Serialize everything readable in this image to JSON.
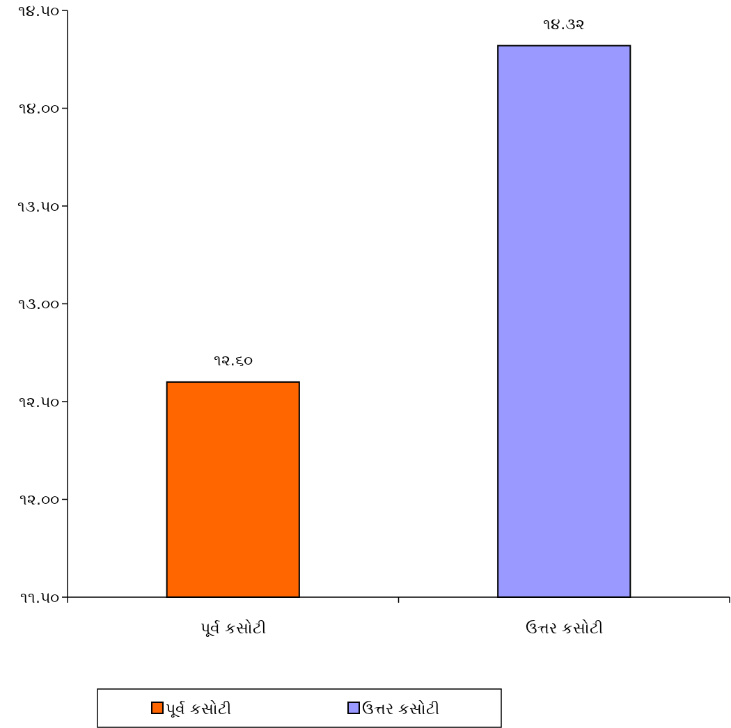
{
  "chart_data": {
    "type": "bar",
    "categories": [
      "પૂર્વ કસોટી",
      "ઉત્તર કસોટી"
    ],
    "series": [
      {
        "name": "પૂર્વ કસોટી",
        "color": "#ff6600",
        "values": [
          12.6,
          null
        ],
        "value_labels": [
          "૧૨.૬૦",
          null
        ]
      },
      {
        "name": "ઉત્તર કસોટી",
        "color": "#9999ff",
        "values": [
          null,
          14.32
        ],
        "value_labels": [
          null,
          "૧૪.૩૨"
        ]
      }
    ],
    "ylim": [
      11.5,
      14.5
    ],
    "yticks": [
      {
        "value": 11.5,
        "label": "૧૧.૫૦"
      },
      {
        "value": 12,
        "label": "૧૨.૦૦"
      },
      {
        "value": 12.5,
        "label": "૧૨.૫૦"
      },
      {
        "value": 13,
        "label": "૧૩.૦૦"
      },
      {
        "value": 13.5,
        "label": "૧૩.૫૦"
      },
      {
        "value": 14,
        "label": "૧૪.૦૦"
      },
      {
        "value": 14.5,
        "label": "૧૪.૫૦"
      }
    ],
    "grid": false,
    "legend": "bottom"
  }
}
